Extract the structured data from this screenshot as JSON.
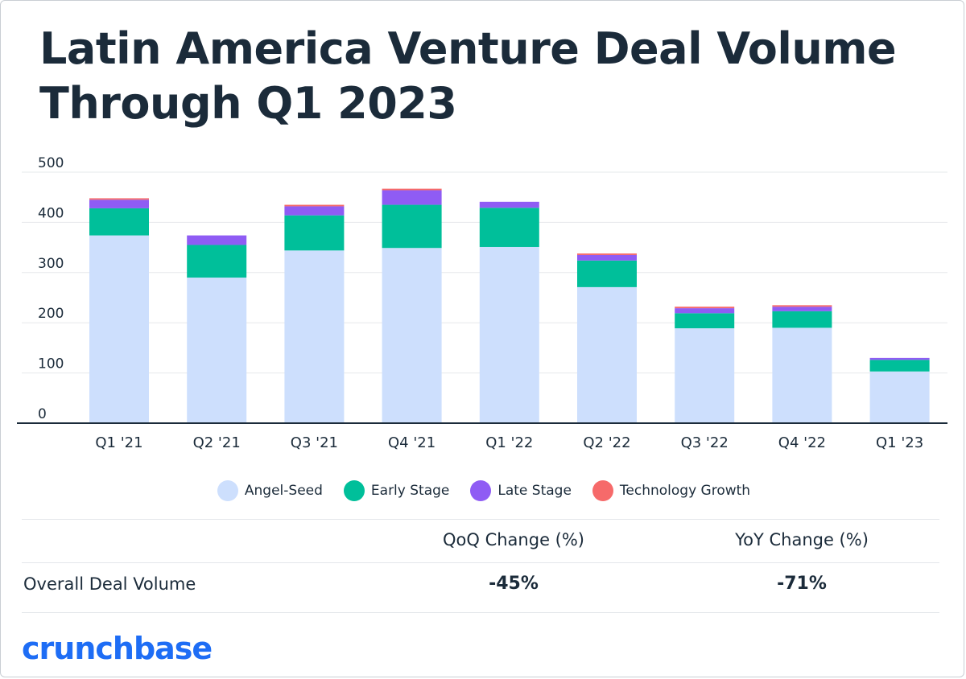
{
  "title_lines": [
    "Latin America Venture Deal Volume",
    "Through Q1 2023"
  ],
  "legend": [
    {
      "label": "Angel-Seed",
      "color": "#cddffd"
    },
    {
      "label": "Early Stage",
      "color": "#00bf9a"
    },
    {
      "label": "Late Stage",
      "color": "#8f5cf4"
    },
    {
      "label": "Technology Growth",
      "color": "#f66a6a"
    }
  ],
  "table": {
    "headers": [
      "QoQ Change (%)",
      "YoY Change (%)"
    ],
    "row_label": "Overall Deal Volume",
    "values": [
      "-45%",
      "-71%"
    ]
  },
  "logo_text": "crunchbase",
  "chart_data": {
    "type": "bar",
    "stacked": true,
    "categories": [
      "Q1 '21",
      "Q2 '21",
      "Q3 '21",
      "Q4 '21",
      "Q1 '22",
      "Q2 '22",
      "Q3 '22",
      "Q4 '22",
      "Q1 '23"
    ],
    "series": [
      {
        "name": "Angel-Seed",
        "color": "#cddffd",
        "values": [
          374,
          290,
          344,
          349,
          351,
          271,
          189,
          190,
          103
        ]
      },
      {
        "name": "Early Stage",
        "color": "#00bf9a",
        "values": [
          54,
          65,
          70,
          86,
          78,
          53,
          30,
          33,
          23
        ]
      },
      {
        "name": "Late Stage",
        "color": "#8f5cf4",
        "values": [
          17,
          19,
          18,
          29,
          12,
          11,
          10,
          9,
          4
        ]
      },
      {
        "name": "Technology Growth",
        "color": "#f66a6a",
        "values": [
          3,
          0,
          3,
          3,
          0,
          3,
          3,
          3,
          0
        ]
      }
    ],
    "yticks": [
      0,
      100,
      200,
      300,
      400,
      500
    ],
    "ylim": [
      0,
      500
    ],
    "grid": true,
    "legend_position": "bottom"
  }
}
